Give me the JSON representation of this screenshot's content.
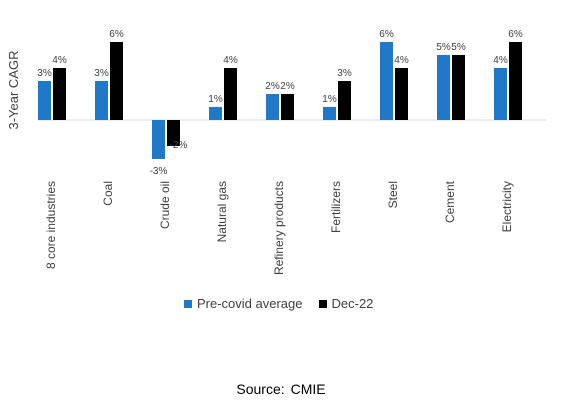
{
  "chart_data": {
    "type": "bar",
    "ylabel": "3-Year CAGR",
    "categories": [
      "8 core industries",
      "Coal",
      "Crude oil",
      "Natural gas",
      "Refinery products",
      "Fertilizers",
      "Steel",
      "Cement",
      "Electricity"
    ],
    "series": [
      {
        "name": "Pre-covid average",
        "values": [
          3,
          3,
          -3,
          1,
          2,
          1,
          6,
          5,
          4
        ],
        "labels": [
          "3%",
          "3%",
          "-3%",
          "1%",
          "2%",
          "1%",
          "6%",
          "5%",
          "4%"
        ],
        "color": "#1f78c8"
      },
      {
        "name": "Dec-22",
        "values": [
          4,
          6,
          -2,
          4,
          2,
          3,
          4,
          5,
          6
        ],
        "labels": [
          "4%",
          "6%",
          "-2%",
          "4%",
          "2%",
          "3%",
          "4%",
          "5%",
          "6%"
        ],
        "color": "#000000"
      }
    ],
    "grid": false,
    "legend_position": "bottom"
  },
  "source": {
    "label": "Source:",
    "value": "CMIE"
  }
}
